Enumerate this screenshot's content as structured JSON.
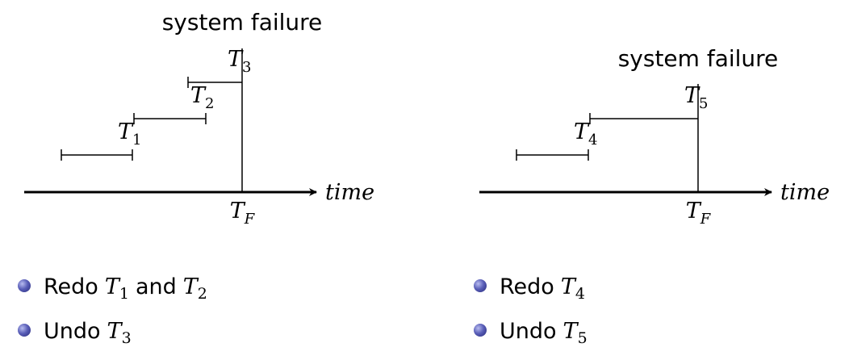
{
  "left_panel": {
    "failure_label": "system failure",
    "axis_label": "time",
    "tf_label": {
      "main": "T",
      "sub": "F"
    },
    "transactions": [
      {
        "main": "T",
        "sub": "1"
      },
      {
        "main": "T",
        "sub": "2"
      },
      {
        "main": "T",
        "sub": "3"
      }
    ],
    "bullets": [
      {
        "verb": "Redo",
        "t1_main": "T",
        "t1_sub": "1",
        "conj": "and",
        "t2_main": "T",
        "t2_sub": "2"
      },
      {
        "verb": "Undo",
        "t1_main": "T",
        "t1_sub": "3"
      }
    ]
  },
  "right_panel": {
    "failure_label": "system failure",
    "axis_label": "time",
    "tf_label": {
      "main": "T",
      "sub": "F"
    },
    "transactions": [
      {
        "main": "T",
        "sub": "4"
      },
      {
        "main": "T",
        "sub": "5"
      }
    ],
    "bullets": [
      {
        "verb": "Redo",
        "t1_main": "T",
        "t1_sub": "4"
      },
      {
        "verb": "Undo",
        "t1_main": "T",
        "t1_sub": "5"
      }
    ]
  }
}
